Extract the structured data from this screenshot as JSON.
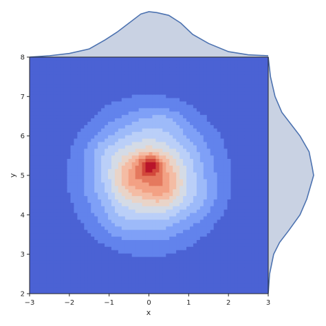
{
  "chart_data": {
    "type": "jointplot-kde",
    "title": "",
    "xlabel": "x",
    "ylabel": "y",
    "xlim": [
      -3,
      3
    ],
    "ylim": [
      2,
      8
    ],
    "xticks": [
      -3,
      -2,
      -1,
      0,
      1,
      2,
      3
    ],
    "yticks": [
      2,
      3,
      4,
      5,
      6,
      7,
      8
    ],
    "grid": false,
    "colormap": "coolwarm",
    "contour_colors": [
      "#4b62d4",
      "#6283ec",
      "#7fa0f7",
      "#9dbaf9",
      "#bacff8",
      "#d4dbe6",
      "#e9d4c8",
      "#f4bca4",
      "#f3a184",
      "#e5795e",
      "#d2483b",
      "#b9152a"
    ],
    "kde_2d": {
      "components": [
        {
          "x": 0.0,
          "y": 5.0,
          "sx": 0.95,
          "sy": 0.95,
          "w": 1.0
        },
        {
          "x": 0.0,
          "y": 5.25,
          "sx": 0.18,
          "sy": 0.2,
          "w": 0.55
        },
        {
          "x": 0.35,
          "y": 4.75,
          "sx": 0.3,
          "sy": 0.35,
          "w": 0.35
        },
        {
          "x": -0.45,
          "y": 4.95,
          "sx": 0.3,
          "sy": 0.35,
          "w": 0.28
        },
        {
          "x": 0.15,
          "y": 5.35,
          "sx": 0.22,
          "sy": 0.15,
          "w": 0.22
        },
        {
          "x": 0.35,
          "y": 6.4,
          "sx": 0.35,
          "sy": 0.2,
          "w": 0.1
        },
        {
          "x": -1.2,
          "y": 5.6,
          "sx": 0.3,
          "sy": 0.25,
          "w": 0.08
        },
        {
          "x": 1.3,
          "y": 4.4,
          "sx": 0.35,
          "sy": 0.3,
          "w": 0.08
        },
        {
          "x": -0.8,
          "y": 3.8,
          "sx": 0.3,
          "sy": 0.3,
          "w": 0.07
        }
      ]
    },
    "marginal_x": {
      "color": "#4c72b0",
      "fill": "#c9d2e3",
      "x": [
        -3.0,
        -2.5,
        -2.0,
        -1.5,
        -1.1,
        -0.8,
        -0.5,
        -0.2,
        0.0,
        0.2,
        0.5,
        0.8,
        1.1,
        1.5,
        2.0,
        2.5,
        3.0
      ],
      "density": [
        0.0,
        0.03,
        0.08,
        0.18,
        0.38,
        0.55,
        0.75,
        0.95,
        1.0,
        0.98,
        0.92,
        0.75,
        0.5,
        0.3,
        0.12,
        0.05,
        0.03
      ]
    },
    "marginal_y": {
      "color": "#4c72b0",
      "fill": "#c9d2e3",
      "y": [
        2.0,
        2.5,
        3.0,
        3.3,
        3.6,
        4.0,
        4.4,
        4.8,
        5.0,
        5.2,
        5.6,
        6.0,
        6.3,
        6.6,
        7.0,
        7.5,
        8.0
      ],
      "density": [
        0.0,
        0.03,
        0.12,
        0.25,
        0.45,
        0.7,
        0.85,
        0.95,
        1.0,
        0.97,
        0.9,
        0.7,
        0.5,
        0.3,
        0.15,
        0.05,
        0.0
      ]
    }
  }
}
